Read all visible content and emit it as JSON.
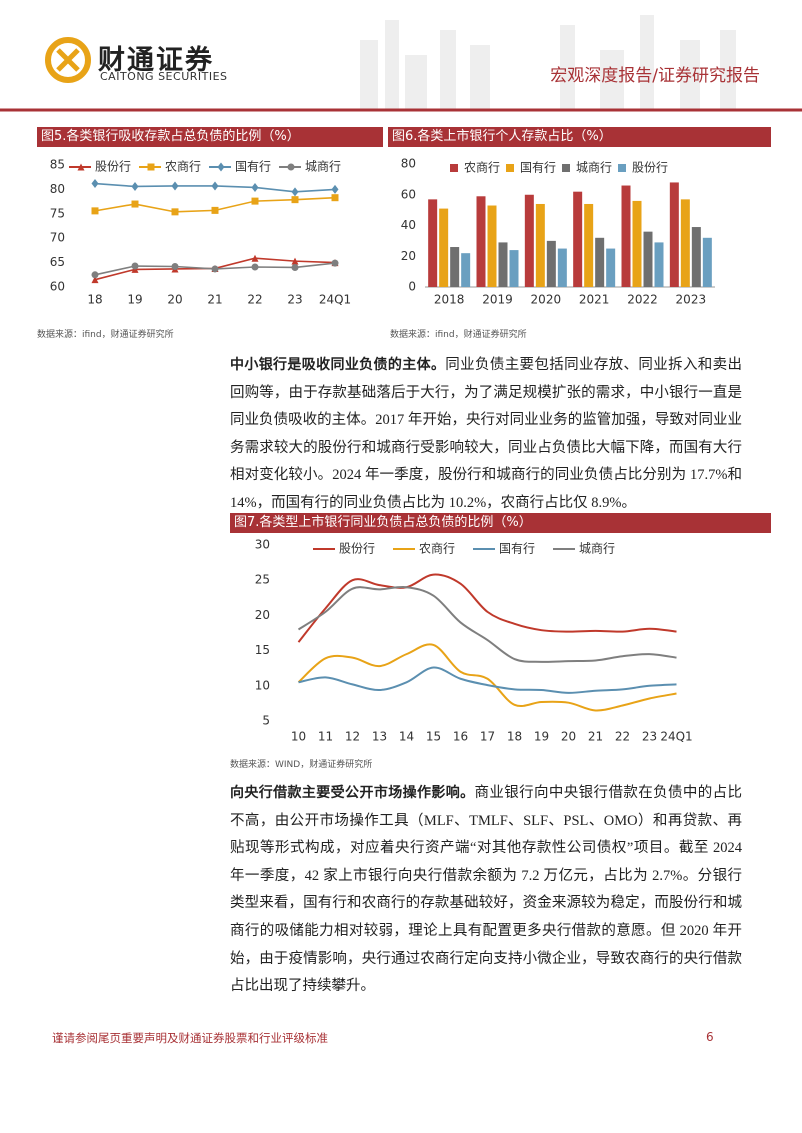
{
  "header": {
    "logo_cn": "财通证券",
    "logo_en": "CAITONG SECURITIES",
    "report_type": "宏观深度报告/证券研究报告"
  },
  "chart_data": [
    {
      "type": "line",
      "title": "图5.各类银行吸收存款占总负债的比例（%）",
      "source": "数据来源：ifind，财通证券研究所",
      "categories": [
        "18",
        "19",
        "20",
        "21",
        "22",
        "23",
        "24Q1"
      ],
      "ylim": [
        60,
        85
      ],
      "yticks": [
        60,
        65,
        70,
        75,
        80,
        85
      ],
      "grid": false,
      "legend": "top",
      "smooth": false,
      "series": [
        {
          "name": "股份行",
          "color": "#c0392b",
          "marker": "triangle",
          "values": [
            61.5,
            63.6,
            63.7,
            63.8,
            65.9,
            65.3,
            65.0
          ]
        },
        {
          "name": "农商行",
          "color": "#e8a317",
          "marker": "square",
          "values": [
            75.6,
            77.0,
            75.4,
            75.7,
            77.6,
            77.9,
            78.3
          ]
        },
        {
          "name": "国有行",
          "color": "#5b8fb0",
          "marker": "diamond",
          "values": [
            81.2,
            80.6,
            80.7,
            80.7,
            80.4,
            79.5,
            80.0
          ]
        },
        {
          "name": "城商行",
          "color": "#7f7f7f",
          "marker": "circle",
          "values": [
            62.5,
            64.3,
            64.2,
            63.7,
            64.1,
            64.0,
            64.9
          ]
        }
      ]
    },
    {
      "type": "bar",
      "title": "图6.各类上市银行个人存款占比（%）",
      "source": "数据来源：ifind，财通证券研究所",
      "categories": [
        "2018",
        "2019",
        "2020",
        "2021",
        "2022",
        "2023"
      ],
      "ylim": [
        0,
        80
      ],
      "yticks": [
        0,
        20,
        40,
        60,
        80
      ],
      "grid": false,
      "legend": "top",
      "series": [
        {
          "name": "农商行",
          "color": "#b83b3b",
          "values": [
            57,
            59,
            60,
            62,
            66,
            68
          ]
        },
        {
          "name": "国有行",
          "color": "#e8a317",
          "values": [
            51,
            53,
            54,
            54,
            56,
            57
          ]
        },
        {
          "name": "城商行",
          "color": "#6f6f6f",
          "values": [
            26,
            29,
            30,
            32,
            36,
            39
          ]
        },
        {
          "name": "股份行",
          "color": "#6a9fc0",
          "values": [
            22,
            24,
            25,
            25,
            29,
            32
          ]
        }
      ]
    },
    {
      "type": "line",
      "title": "图7.各类型上市银行同业负债占总负债的比例（%）",
      "source": "数据来源：WIND，财通证券研究所",
      "categories": [
        "10",
        "11",
        "12",
        "13",
        "14",
        "15",
        "16",
        "17",
        "18",
        "19",
        "20",
        "21",
        "22",
        "23",
        "24Q1"
      ],
      "ylim": [
        5,
        30
      ],
      "yticks": [
        5,
        10,
        15,
        20,
        25,
        30
      ],
      "grid": false,
      "legend": "top",
      "smooth": true,
      "series": [
        {
          "name": "股份行",
          "color": "#c0392b",
          "values": [
            16.2,
            21,
            25,
            24.3,
            24,
            25.8,
            24.5,
            20.5,
            18.8,
            17.9,
            17.7,
            17.8,
            17.7,
            18.1,
            17.7
          ]
        },
        {
          "name": "农商行",
          "color": "#e8a317",
          "values": [
            10.5,
            13.9,
            14,
            12.8,
            14.5,
            15.8,
            12,
            11,
            7.3,
            7.7,
            7.6,
            6.5,
            7.2,
            8.2,
            8.9
          ]
        },
        {
          "name": "国有行",
          "color": "#5b8fb0",
          "values": [
            10.5,
            11.2,
            10.2,
            9.4,
            10.5,
            12.6,
            11,
            10.1,
            9.5,
            9.4,
            9,
            9.3,
            9.5,
            10,
            10.2
          ]
        },
        {
          "name": "城商行",
          "color": "#7f7f7f",
          "values": [
            18,
            20.5,
            23.8,
            23.7,
            24,
            22.8,
            19,
            16.5,
            13.8,
            13.4,
            13.5,
            13.6,
            14.2,
            14.5,
            14
          ]
        }
      ]
    }
  ],
  "paragraphs": [
    {
      "lead": "中小银行是吸收同业负债的主体。",
      "text": "同业负债主要包括同业存放、同业拆入和卖出回购等，由于存款基础落后于大行，为了满足规模扩张的需求，中小银行一直是同业负债吸收的主体。2017 年开始，央行对同业业务的监管加强，导致对同业业务需求较大的股份行和城商行受影响较大，同业占负债比大幅下降，而国有大行相对变化较小。2024 年一季度，股份行和城商行的同业负债占比分别为 17.7%和 14%，而国有行的同业负债占比为 10.2%，农商行占比仅 8.9%。"
    },
    {
      "lead": "向央行借款主要受公开市场操作影响。",
      "text": "商业银行向中央银行借款在负债中的占比不高，由公开市场操作工具（MLF、TMLF、SLF、PSL、OMO）和再贷款、再贴现等形式构成，对应着央行资产端“对其他存款性公司债权”项目。截至 2024 年一季度，42 家上市银行向央行借款余额为 7.2 万亿元，占比为 2.7%。分银行类型来看，国有行和农商行的存款基础较好，资金来源较为稳定，而股份行和城商行的吸储能力相对较弱，理论上具有配置更多央行借款的意愿。但 2020 年开始，由于疫情影响，央行通过农商行定向支持小微企业，导致农商行的央行借款占比出现了持续攀升。"
    }
  ],
  "footer": {
    "disclaimer": "谨请参阅尾页重要声明及财通证券股票和行业评级标准",
    "page": 6
  }
}
